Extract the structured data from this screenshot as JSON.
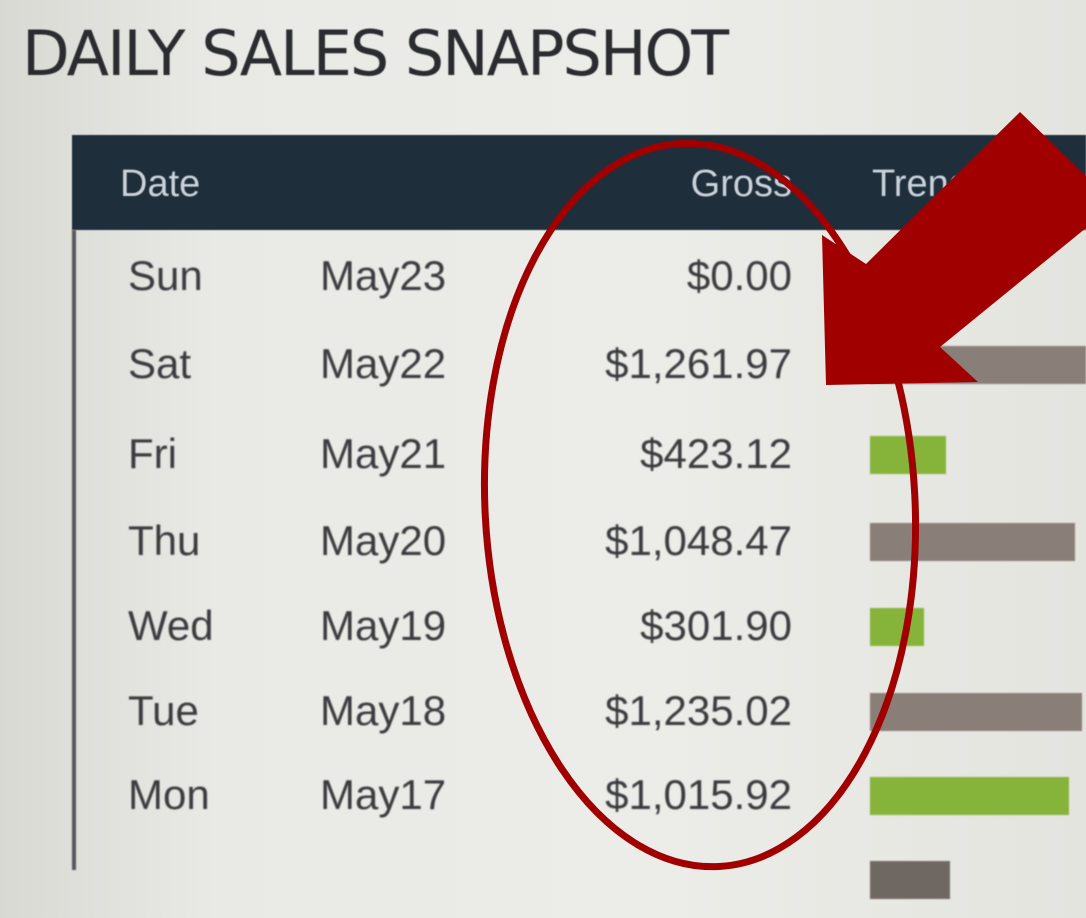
{
  "title": "DAILY SALES SNAPSHOT",
  "table": {
    "headers": {
      "date": "Date",
      "gross": "Gross",
      "trend": "Trend"
    },
    "rows": [
      {
        "day": "Sun",
        "date": "May23",
        "gross": "$0.00",
        "trend": 0,
        "trend_color": "#8a7f78"
      },
      {
        "day": "Sat",
        "date": "May22",
        "gross": "$1,261.97",
        "trend": 1.0,
        "trend_color": "#8a7f78"
      },
      {
        "day": "Fri",
        "date": "May21",
        "gross": "$423.12",
        "trend": 0.35,
        "trend_color": "#86b43a"
      },
      {
        "day": "Thu",
        "date": "May20",
        "gross": "$1,048.47",
        "trend": 0.95,
        "trend_color": "#8a7f78"
      },
      {
        "day": "Wed",
        "date": "May19",
        "gross": "$301.90",
        "trend": 0.25,
        "trend_color": "#86b43a"
      },
      {
        "day": "Tue",
        "date": "May18",
        "gross": "$1,235.02",
        "trend": 0.98,
        "trend_color": "#8a7f78"
      },
      {
        "day": "Mon",
        "date": "May17",
        "gross": "$1,015.92",
        "trend": 0.92,
        "trend_color": "#86b43a"
      },
      {
        "day": "",
        "date": "",
        "gross": "",
        "trend": 0.37,
        "trend_color": "#6f6862"
      }
    ]
  },
  "annotation": {
    "color": "#a00000",
    "shapes": [
      "ellipse-around-gross-column",
      "arrow-pointing-to-gross"
    ]
  }
}
